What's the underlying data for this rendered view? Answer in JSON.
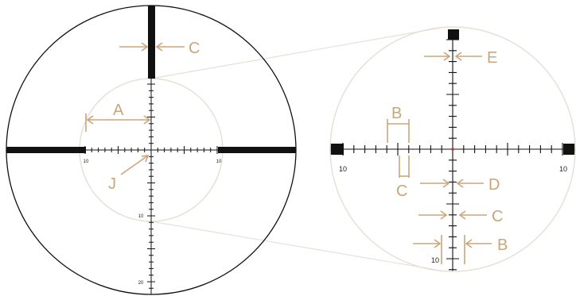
{
  "colors": {
    "reticle": "#111111",
    "annotation": "#c9a67a",
    "zoom_circle": "#e6e0d8",
    "center_dot": "#c0392b"
  },
  "left_scope": {
    "x_scale_labels": {
      "left": "10",
      "right": "10"
    },
    "y_scale_labels": {
      "mid": "10",
      "low": "20"
    },
    "callouts": {
      "a": "A",
      "c": "C",
      "j": "J"
    }
  },
  "right_scope": {
    "x_scale_labels": {
      "left": "10",
      "right": "10"
    },
    "y_scale_label": "10",
    "callouts": {
      "e": "E",
      "b_top": "B",
      "c_bottom": "C",
      "d": "D",
      "c_right": "C",
      "b_right": "B"
    }
  }
}
